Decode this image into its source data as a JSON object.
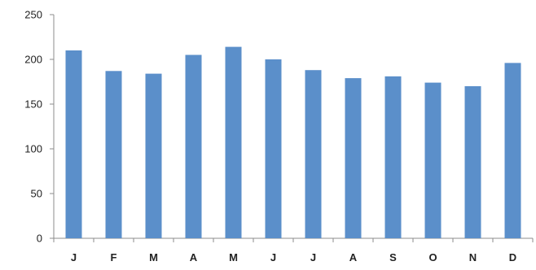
{
  "chart_data": {
    "type": "bar",
    "title": "",
    "xlabel": "",
    "ylabel": "",
    "categories": [
      "J",
      "F",
      "M",
      "A",
      "M",
      "J",
      "J",
      "A",
      "S",
      "O",
      "N",
      "D"
    ],
    "values": [
      210,
      187,
      184,
      205,
      214,
      200,
      188,
      179,
      181,
      174,
      170,
      196
    ],
    "ylim": [
      0,
      250
    ],
    "yticks": [
      "0",
      "50",
      "100",
      "150",
      "200",
      "250"
    ],
    "grid": false,
    "legend": "none",
    "bar_color": "#5b8fca",
    "axis_color": "#8c8c8c"
  }
}
